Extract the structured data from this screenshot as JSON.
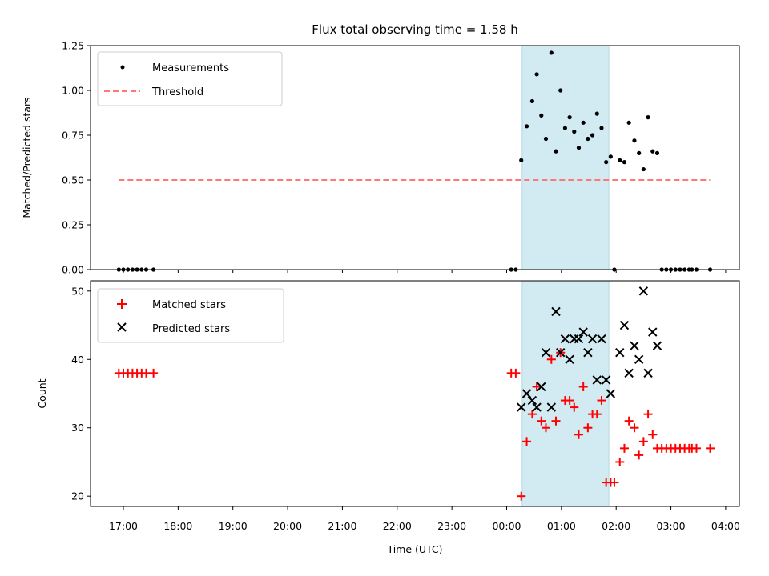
{
  "title": "Flux total observing time = 1.58 h",
  "colors": {
    "measurement": "#000000",
    "threshold": "#ff7777",
    "matched": "#ff0000",
    "predicted": "#000000",
    "span": "#add8e6"
  },
  "chart_data": [
    {
      "type": "scatter",
      "ylabel": "Matched/Predicted stars",
      "ylim": [
        0,
        1.25
      ],
      "yticks": [
        "0.00",
        "0.25",
        "0.50",
        "0.75",
        "1.00",
        "1.25"
      ],
      "xlim": [
        16.4,
        28.25
      ],
      "x_unit": "hours from 00:00 UTC of first day (24+ = next day)",
      "legend": {
        "placement": "upper-left",
        "items": [
          {
            "label": "Measurements",
            "kind": "dot"
          },
          {
            "label": "Threshold",
            "kind": "dashed"
          }
        ]
      },
      "span": {
        "x_start": "00:17",
        "x_end": "01:52"
      },
      "series": [
        {
          "name": "Measurements",
          "points": [
            {
              "x": "16:55",
              "y": 0
            },
            {
              "x": "17:00",
              "y": 0
            },
            {
              "x": "17:05",
              "y": 0
            },
            {
              "x": "17:10",
              "y": 0
            },
            {
              "x": "17:15",
              "y": 0
            },
            {
              "x": "17:20",
              "y": 0
            },
            {
              "x": "17:25",
              "y": 0
            },
            {
              "x": "17:33",
              "y": 0
            },
            {
              "x": "00:05",
              "y": 0
            },
            {
              "x": "00:10",
              "y": 0
            },
            {
              "x": "00:16",
              "y": 0.61
            },
            {
              "x": "00:22",
              "y": 0.8
            },
            {
              "x": "00:28",
              "y": 0.94
            },
            {
              "x": "00:33",
              "y": 1.09
            },
            {
              "x": "00:38",
              "y": 0.86
            },
            {
              "x": "00:43",
              "y": 0.73
            },
            {
              "x": "00:49",
              "y": 1.21
            },
            {
              "x": "00:54",
              "y": 0.66
            },
            {
              "x": "00:59",
              "y": 1.0
            },
            {
              "x": "01:04",
              "y": 0.79
            },
            {
              "x": "01:09",
              "y": 0.85
            },
            {
              "x": "01:14",
              "y": 0.77
            },
            {
              "x": "01:19",
              "y": 0.68
            },
            {
              "x": "01:24",
              "y": 0.82
            },
            {
              "x": "01:29",
              "y": 0.73
            },
            {
              "x": "01:34",
              "y": 0.75
            },
            {
              "x": "01:39",
              "y": 0.87
            },
            {
              "x": "01:44",
              "y": 0.79
            },
            {
              "x": "01:49",
              "y": 0.6
            },
            {
              "x": "01:54",
              "y": 0.63
            },
            {
              "x": "01:58",
              "y": 0.0
            },
            {
              "x": "02:04",
              "y": 0.61
            },
            {
              "x": "02:09",
              "y": 0.6
            },
            {
              "x": "02:14",
              "y": 0.82
            },
            {
              "x": "02:20",
              "y": 0.72
            },
            {
              "x": "02:25",
              "y": 0.65
            },
            {
              "x": "02:30",
              "y": 0.56
            },
            {
              "x": "02:35",
              "y": 0.85
            },
            {
              "x": "02:40",
              "y": 0.66
            },
            {
              "x": "02:45",
              "y": 0.65
            },
            {
              "x": "02:50",
              "y": 0
            },
            {
              "x": "02:55",
              "y": 0
            },
            {
              "x": "03:00",
              "y": 0
            },
            {
              "x": "03:05",
              "y": 0
            },
            {
              "x": "03:10",
              "y": 0
            },
            {
              "x": "03:15",
              "y": 0
            },
            {
              "x": "03:20",
              "y": 0
            },
            {
              "x": "03:23",
              "y": 0
            },
            {
              "x": "03:28",
              "y": 0
            },
            {
              "x": "03:43",
              "y": 0
            }
          ]
        },
        {
          "name": "Threshold",
          "line": {
            "x_start": "16:55",
            "x_end": "03:43",
            "y": 0.5
          }
        }
      ]
    },
    {
      "type": "scatter",
      "ylabel": "Count",
      "xlabel": "Time (UTC)",
      "ylim": [
        18.5,
        51.5
      ],
      "yticks": [
        "20",
        "30",
        "40",
        "50"
      ],
      "xlim": [
        16.4,
        28.25
      ],
      "xticks": [
        "17:00",
        "18:00",
        "19:00",
        "20:00",
        "21:00",
        "22:00",
        "23:00",
        "00:00",
        "01:00",
        "02:00",
        "03:00",
        "04:00"
      ],
      "legend": {
        "placement": "upper-left",
        "items": [
          {
            "label": "Matched stars",
            "kind": "plus"
          },
          {
            "label": "Predicted stars",
            "kind": "cross"
          }
        ]
      },
      "span": {
        "x_start": "00:17",
        "x_end": "01:52"
      },
      "series": [
        {
          "name": "Matched stars",
          "points": [
            {
              "x": "16:55",
              "y": 38
            },
            {
              "x": "17:00",
              "y": 38
            },
            {
              "x": "17:05",
              "y": 38
            },
            {
              "x": "17:10",
              "y": 38
            },
            {
              "x": "17:15",
              "y": 38
            },
            {
              "x": "17:20",
              "y": 38
            },
            {
              "x": "17:25",
              "y": 38
            },
            {
              "x": "17:33",
              "y": 38
            },
            {
              "x": "00:05",
              "y": 38
            },
            {
              "x": "00:10",
              "y": 38
            },
            {
              "x": "00:16",
              "y": 20
            },
            {
              "x": "00:22",
              "y": 28
            },
            {
              "x": "00:28",
              "y": 32
            },
            {
              "x": "00:33",
              "y": 36
            },
            {
              "x": "00:38",
              "y": 31
            },
            {
              "x": "00:43",
              "y": 30
            },
            {
              "x": "00:49",
              "y": 40
            },
            {
              "x": "00:54",
              "y": 31
            },
            {
              "x": "00:59",
              "y": 41
            },
            {
              "x": "01:04",
              "y": 34
            },
            {
              "x": "01:09",
              "y": 34
            },
            {
              "x": "01:14",
              "y": 33
            },
            {
              "x": "01:19",
              "y": 29
            },
            {
              "x": "01:24",
              "y": 36
            },
            {
              "x": "01:29",
              "y": 30
            },
            {
              "x": "01:34",
              "y": 32
            },
            {
              "x": "01:39",
              "y": 32
            },
            {
              "x": "01:44",
              "y": 34
            },
            {
              "x": "01:49",
              "y": 22
            },
            {
              "x": "01:54",
              "y": 22
            },
            {
              "x": "01:58",
              "y": 22
            },
            {
              "x": "02:04",
              "y": 25
            },
            {
              "x": "02:09",
              "y": 27
            },
            {
              "x": "02:14",
              "y": 31
            },
            {
              "x": "02:20",
              "y": 30
            },
            {
              "x": "02:25",
              "y": 26
            },
            {
              "x": "02:30",
              "y": 28
            },
            {
              "x": "02:35",
              "y": 32
            },
            {
              "x": "02:40",
              "y": 29
            },
            {
              "x": "02:45",
              "y": 27
            },
            {
              "x": "02:50",
              "y": 27
            },
            {
              "x": "02:55",
              "y": 27
            },
            {
              "x": "03:00",
              "y": 27
            },
            {
              "x": "03:05",
              "y": 27
            },
            {
              "x": "03:10",
              "y": 27
            },
            {
              "x": "03:15",
              "y": 27
            },
            {
              "x": "03:20",
              "y": 27
            },
            {
              "x": "03:23",
              "y": 27
            },
            {
              "x": "03:28",
              "y": 27
            },
            {
              "x": "03:43",
              "y": 27
            }
          ]
        },
        {
          "name": "Predicted stars",
          "points": [
            {
              "x": "00:16",
              "y": 33
            },
            {
              "x": "00:22",
              "y": 35
            },
            {
              "x": "00:28",
              "y": 34
            },
            {
              "x": "00:33",
              "y": 33
            },
            {
              "x": "00:38",
              "y": 36
            },
            {
              "x": "00:43",
              "y": 41
            },
            {
              "x": "00:49",
              "y": 33
            },
            {
              "x": "00:54",
              "y": 47
            },
            {
              "x": "00:59",
              "y": 41
            },
            {
              "x": "01:04",
              "y": 43
            },
            {
              "x": "01:09",
              "y": 40
            },
            {
              "x": "01:14",
              "y": 43
            },
            {
              "x": "01:19",
              "y": 43
            },
            {
              "x": "01:24",
              "y": 44
            },
            {
              "x": "01:29",
              "y": 41
            },
            {
              "x": "01:34",
              "y": 43
            },
            {
              "x": "01:39",
              "y": 37
            },
            {
              "x": "01:44",
              "y": 43
            },
            {
              "x": "01:49",
              "y": 37
            },
            {
              "x": "01:54",
              "y": 35
            },
            {
              "x": "02:04",
              "y": 41
            },
            {
              "x": "02:09",
              "y": 45
            },
            {
              "x": "02:14",
              "y": 38
            },
            {
              "x": "02:20",
              "y": 42
            },
            {
              "x": "02:25",
              "y": 40
            },
            {
              "x": "02:30",
              "y": 50
            },
            {
              "x": "02:35",
              "y": 38
            },
            {
              "x": "02:40",
              "y": 44
            },
            {
              "x": "02:45",
              "y": 42
            }
          ]
        }
      ]
    }
  ]
}
